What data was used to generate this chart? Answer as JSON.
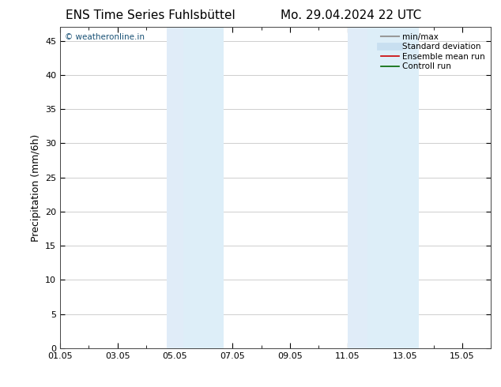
{
  "title_left": "ENS Time Series Fuhlsbüttel",
  "title_right": "Mo. 29.04.2024 22 UTC",
  "ylabel": "Precipitation (mm/6h)",
  "ylim": [
    0,
    47
  ],
  "yticks": [
    0,
    5,
    10,
    15,
    20,
    25,
    30,
    35,
    40,
    45
  ],
  "xtick_labels": [
    "01.05",
    "03.05",
    "05.05",
    "07.05",
    "09.05",
    "11.05",
    "13.05",
    "15.05"
  ],
  "xtick_positions": [
    0,
    2,
    4,
    6,
    8,
    10,
    12,
    14
  ],
  "xlim": [
    0,
    15
  ],
  "shaded_bands": [
    {
      "x_start": 3.7,
      "x_end": 4.3,
      "color": "#e0ecf8"
    },
    {
      "x_start": 4.3,
      "x_end": 5.7,
      "color": "#ddeef8"
    },
    {
      "x_start": 10.0,
      "x_end": 10.7,
      "color": "#e0ecf8"
    },
    {
      "x_start": 10.7,
      "x_end": 12.5,
      "color": "#ddeef8"
    }
  ],
  "shade_color_light": "#e8f2fc",
  "shade_color_main": "#d6e8f5",
  "background_color": "#ffffff",
  "watermark_text": "© weatheronline.in",
  "watermark_color": "#1a5276",
  "legend_entries": [
    {
      "label": "min/max",
      "color": "#999999",
      "lw": 1.5
    },
    {
      "label": "Standard deviation",
      "color": "#c8dff0",
      "lw": 7
    },
    {
      "label": "Ensemble mean run",
      "color": "#cc0000",
      "lw": 1.2
    },
    {
      "label": "Controll run",
      "color": "#006600",
      "lw": 1.2
    }
  ],
  "grid_color": "#bbbbbb",
  "tick_fontsize": 8,
  "label_fontsize": 9,
  "title_fontsize": 11
}
